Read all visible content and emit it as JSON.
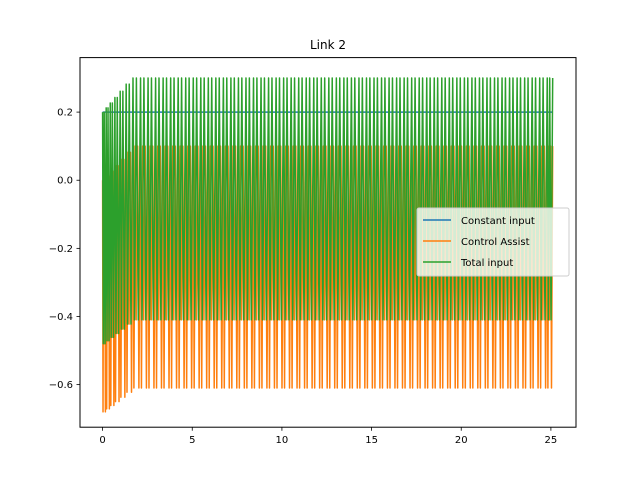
{
  "chart_data": {
    "type": "line",
    "title": "Link 2",
    "xlabel": "",
    "ylabel": "",
    "xlim": [
      -1.26,
      26.4
    ],
    "ylim": [
      -0.725,
      0.36
    ],
    "xticks": [
      0,
      5,
      10,
      15,
      20,
      25
    ],
    "yticks": [
      -0.6,
      -0.4,
      -0.2,
      0.0,
      0.2
    ],
    "xtick_labels": [
      "0",
      "5",
      "10",
      "15",
      "20",
      "25"
    ],
    "ytick_labels": [
      "−0.6",
      "−0.4",
      "−0.2",
      "0.0",
      "0.2"
    ],
    "grid": false,
    "legend_position": "center-right",
    "oscillation": {
      "x_start": 0,
      "x_end": 25.1,
      "period": 0.42,
      "initial_period": 0.2,
      "settle_x": 1.6
    },
    "series": [
      {
        "name": "Constant input",
        "color": "#1f77b4",
        "constant": 0.2
      },
      {
        "name": "Control Assist",
        "color": "#ff7f0e",
        "peak_start": 0.0,
        "peak_steady": 0.1,
        "trough_start": -0.68,
        "trough_steady": -0.61,
        "secondary_trough_start": -0.48,
        "secondary_trough_steady": -0.41
      },
      {
        "name": "Total input",
        "color": "#2ca02c",
        "peak_start": 0.2,
        "peak_steady": 0.3,
        "trough_start": -0.48,
        "trough_steady": -0.41
      }
    ]
  }
}
